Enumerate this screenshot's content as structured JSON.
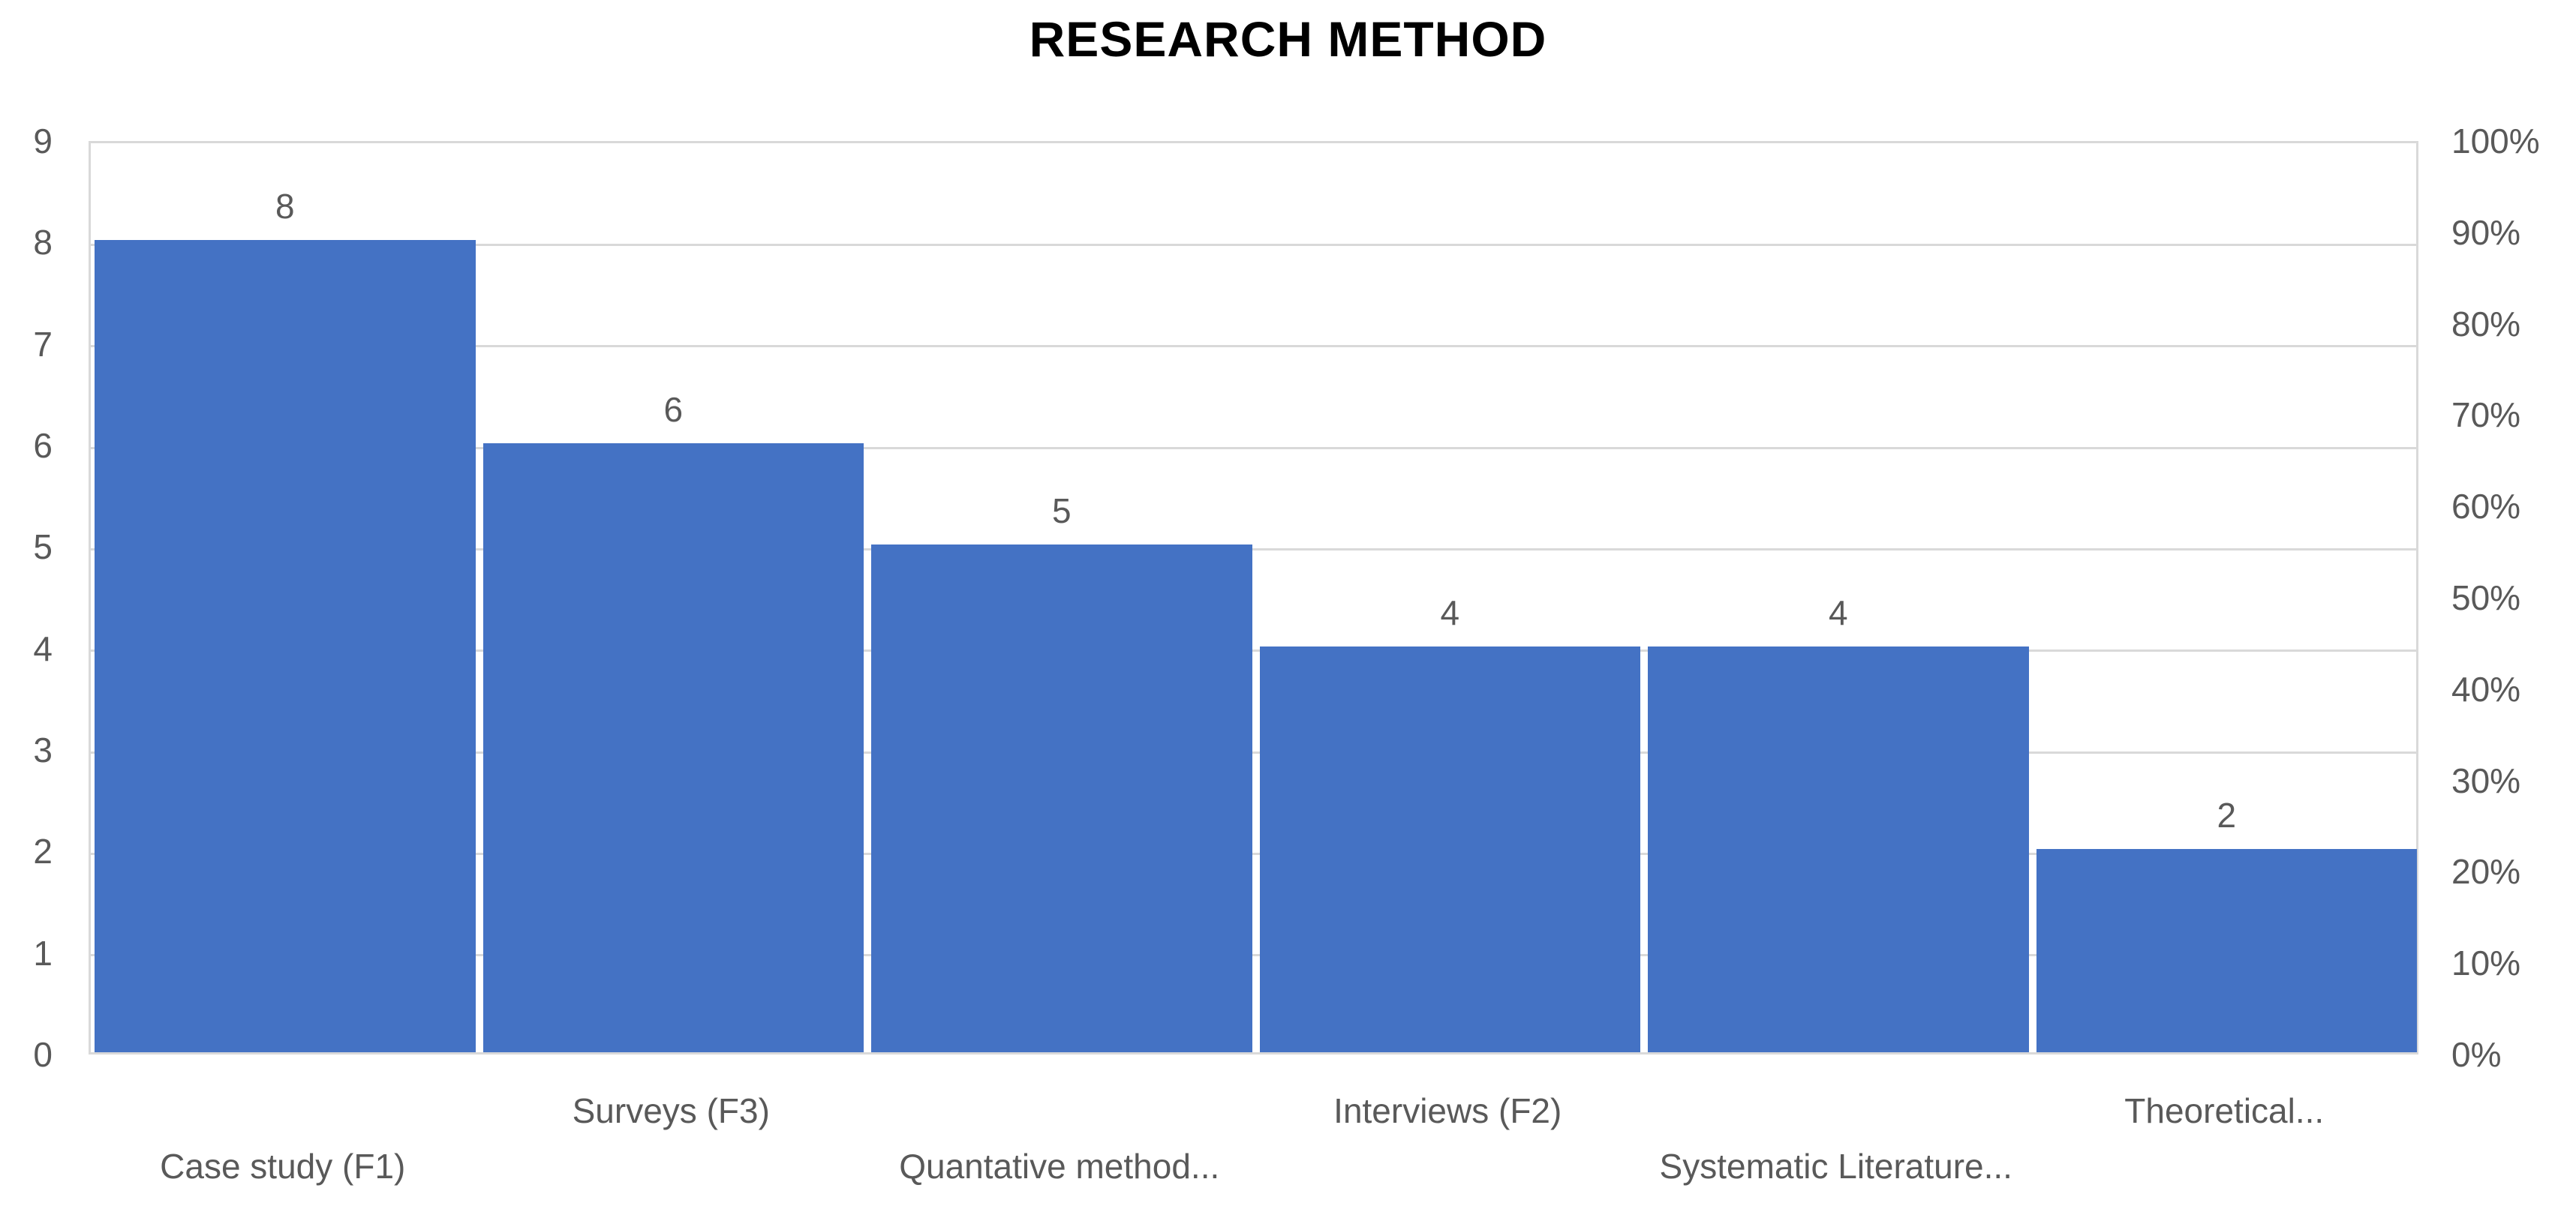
{
  "title": "RESEARCH METHOD",
  "chart_data": {
    "type": "bar",
    "title": "RESEARCH METHOD",
    "categories": [
      "Case study (F1)",
      "Surveys (F3)",
      "Quantative method...",
      "Interviews (F2)",
      "Systematic Literature...",
      "Theoretical..."
    ],
    "values": [
      8,
      6,
      5,
      4,
      4,
      2
    ],
    "data_labels": [
      "8",
      "6",
      "5",
      "4",
      "4",
      "2"
    ],
    "xlabel": "",
    "ylabel": "",
    "left_axis": {
      "min": 0,
      "max": 9,
      "ticks": [
        "9",
        "8",
        "7",
        "6",
        "5",
        "4",
        "3",
        "2",
        "1",
        "0"
      ]
    },
    "right_axis": {
      "min": 0,
      "max": 100,
      "step": 10,
      "ticks": [
        "100%",
        "90%",
        "80%",
        "70%",
        "60%",
        "50%",
        "40%",
        "30%",
        "20%",
        "10%",
        "0%"
      ]
    },
    "grid": true,
    "legend_position": "none",
    "x_label_layout": "staggered",
    "colors": {
      "bar": "#4472C4",
      "gridline": "#D9D9D9",
      "labels": "#595959",
      "title": "#000000",
      "background": "#FFFFFF"
    }
  }
}
